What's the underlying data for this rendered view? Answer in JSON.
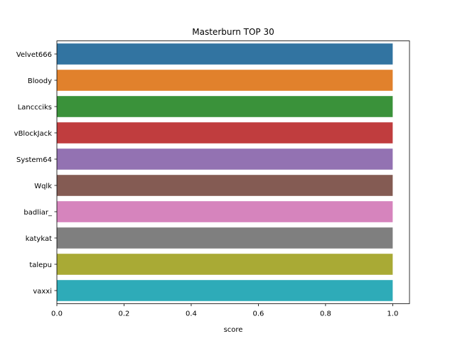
{
  "chart_data": {
    "type": "bar",
    "orientation": "horizontal",
    "title": "Masterburn TOP 30",
    "xlabel": "score",
    "ylabel": "",
    "xlim": [
      0,
      1.05
    ],
    "xticks": [
      "0.0",
      "0.2",
      "0.4",
      "0.6",
      "0.8",
      "1.0"
    ],
    "categories": [
      "Velvet666",
      "Bloody",
      "Lanccciks",
      "vBlockJack",
      "System64",
      "Wqlk",
      "badliar_",
      "katykat",
      "talepu",
      "vaxxi"
    ],
    "values": [
      1.0,
      1.0,
      1.0,
      1.0,
      1.0,
      1.0,
      1.0,
      1.0,
      1.0,
      1.0
    ],
    "colors": [
      "#3274a1",
      "#e1812c",
      "#3a923a",
      "#c03d3e",
      "#9372b2",
      "#845b53",
      "#d684bd",
      "#7f7f7f",
      "#a9aa35",
      "#2eabb8"
    ],
    "grid": false,
    "legend": "none"
  }
}
